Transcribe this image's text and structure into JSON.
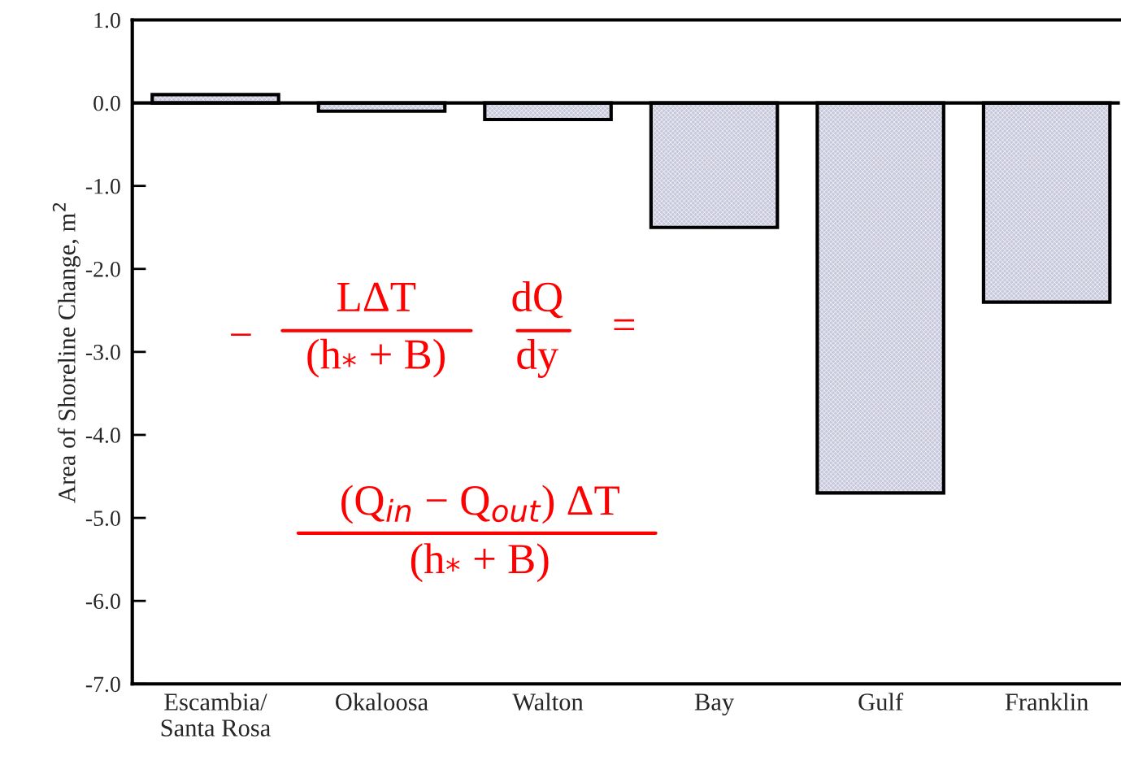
{
  "chart_data": {
    "type": "bar",
    "ylabel": "Area of Shoreline Change, m$^{2}$",
    "categories": [
      "Escambia/\nSanta Rosa",
      "Okaloosa",
      "Walton",
      "Bay",
      "Gulf",
      "Franklin"
    ],
    "values": [
      0.1,
      -0.1,
      -0.2,
      -1.5,
      -4.7,
      -2.4
    ],
    "color": "#c8c8dc",
    "ylim": [
      -7,
      1
    ],
    "yticks": [
      {
        "value": 1,
        "label": "1.0"
      },
      {
        "value": 0,
        "label": "0.0"
      },
      {
        "value": -1,
        "label": "-1.0"
      },
      {
        "value": -2,
        "label": "-2.0"
      },
      {
        "value": -3,
        "label": "-3.0"
      },
      {
        "value": -4,
        "label": "-4.0"
      },
      {
        "value": -5,
        "label": "-5.0"
      },
      {
        "value": -6,
        "label": "-6.0"
      },
      {
        "value": -7,
        "label": "-7.0"
      }
    ],
    "ref_lines": [
      {
        "axis": "y",
        "value": 0,
        "color": "#000000"
      }
    ],
    "grid": false,
    "legend": false,
    "annotations": [
      "−",
      "LΔT",
      "(h$_{*}$ + B)",
      "dQ",
      "dy",
      "=",
      "(Q$_{in}$ − Q$_{out}$) ΔT",
      "(h$_{*}$ + B)"
    ]
  }
}
